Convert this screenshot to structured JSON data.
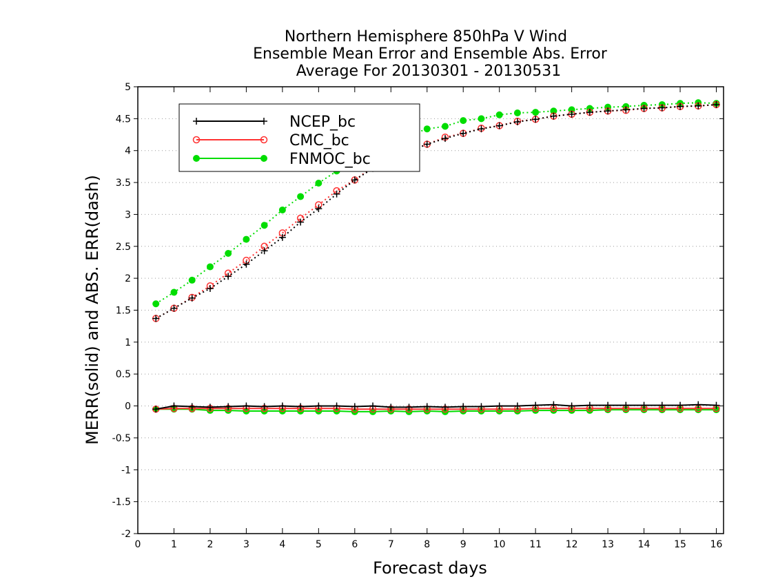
{
  "chart_data": {
    "type": "line",
    "title_lines": [
      "Northern Hemisphere 850hPa V Wind",
      "Ensemble Mean Error and Ensemble Abs. Error",
      "Average For 20130301 - 20130531"
    ],
    "xlabel": "Forecast days",
    "ylabel": "MERR(solid) and ABS. ERR(dash)",
    "xlim": [
      0,
      16.2
    ],
    "ylim": [
      -2,
      5
    ],
    "x_ticks": [
      0,
      1,
      2,
      3,
      4,
      5,
      6,
      7,
      8,
      9,
      10,
      11,
      12,
      13,
      14,
      15,
      16
    ],
    "y_ticks": [
      -2,
      -1.5,
      -1,
      -0.5,
      0,
      0.5,
      1,
      1.5,
      2,
      2.5,
      3,
      3.5,
      4,
      4.5,
      5
    ],
    "grid": "horizontal dotted",
    "legend_position": "top-left",
    "x": [
      0.5,
      1,
      1.5,
      2,
      2.5,
      3,
      3.5,
      4,
      4.5,
      5,
      5.5,
      6,
      6.5,
      7,
      7.5,
      8,
      8.5,
      9,
      9.5,
      10,
      10.5,
      11,
      11.5,
      12,
      12.5,
      13,
      13.5,
      14,
      14.5,
      15,
      15.5,
      16
    ],
    "series": [
      {
        "name": "NCEP_bc",
        "color": "#000000",
        "marker": "plus",
        "abs_err": [
          1.37,
          1.53,
          1.69,
          1.84,
          2.03,
          2.22,
          2.43,
          2.64,
          2.88,
          3.09,
          3.32,
          3.54,
          3.72,
          3.86,
          3.98,
          4.1,
          4.19,
          4.27,
          4.34,
          4.39,
          4.45,
          4.49,
          4.54,
          4.57,
          4.6,
          4.62,
          4.64,
          4.66,
          4.67,
          4.69,
          4.7,
          4.72
        ],
        "mean_err": [
          -0.05,
          0.0,
          -0.01,
          -0.02,
          -0.01,
          0.0,
          -0.01,
          0.0,
          -0.01,
          0.0,
          0.0,
          -0.01,
          0.0,
          -0.02,
          -0.02,
          -0.01,
          -0.02,
          -0.01,
          -0.01,
          0.0,
          0.0,
          0.01,
          0.02,
          0.0,
          0.01,
          0.01,
          0.01,
          0.01,
          0.01,
          0.01,
          0.02,
          0.01
        ]
      },
      {
        "name": "CMC_bc",
        "color": "#ff3030",
        "marker": "open-circle",
        "abs_err": [
          1.37,
          1.53,
          1.7,
          1.88,
          2.08,
          2.28,
          2.5,
          2.71,
          2.94,
          3.15,
          3.37,
          3.54,
          3.74,
          3.87,
          3.99,
          4.1,
          4.21,
          4.27,
          4.35,
          4.39,
          4.46,
          4.49,
          4.54,
          4.57,
          4.6,
          4.62,
          4.63,
          4.66,
          4.67,
          4.69,
          4.7,
          4.72
        ],
        "mean_err": [
          -0.05,
          -0.04,
          -0.04,
          -0.04,
          -0.04,
          -0.04,
          -0.04,
          -0.04,
          -0.04,
          -0.04,
          -0.04,
          -0.05,
          -0.05,
          -0.05,
          -0.05,
          -0.05,
          -0.05,
          -0.05,
          -0.05,
          -0.05,
          -0.05,
          -0.04,
          -0.04,
          -0.04,
          -0.04,
          -0.04,
          -0.04,
          -0.04,
          -0.04,
          -0.04,
          -0.04,
          -0.04
        ]
      },
      {
        "name": "FNMOC_bc",
        "color": "#00dd00",
        "marker": "filled-circle",
        "abs_err": [
          1.6,
          1.78,
          1.97,
          2.18,
          2.39,
          2.61,
          2.83,
          3.07,
          3.28,
          3.49,
          3.68,
          3.85,
          3.99,
          4.12,
          4.24,
          4.34,
          4.38,
          4.47,
          4.5,
          4.56,
          4.59,
          4.6,
          4.62,
          4.64,
          4.66,
          4.68,
          4.69,
          4.71,
          4.72,
          4.74,
          4.75,
          4.74
        ],
        "mean_err": [
          -0.05,
          -0.05,
          -0.05,
          -0.07,
          -0.07,
          -0.08,
          -0.08,
          -0.08,
          -0.08,
          -0.08,
          -0.08,
          -0.09,
          -0.09,
          -0.08,
          -0.09,
          -0.08,
          -0.09,
          -0.08,
          -0.08,
          -0.08,
          -0.08,
          -0.07,
          -0.07,
          -0.07,
          -0.07,
          -0.06,
          -0.06,
          -0.06,
          -0.06,
          -0.06,
          -0.06,
          -0.06
        ]
      }
    ]
  }
}
